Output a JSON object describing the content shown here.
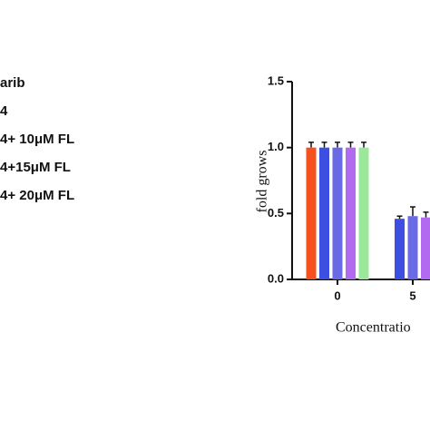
{
  "chart_data": {
    "type": "bar",
    "y_label": "fold grows",
    "x_label": "Concentratio",
    "categories": [
      "0",
      "5"
    ],
    "ylim": [
      0,
      1.5
    ],
    "yticks": [
      {
        "value": 0,
        "label": "0.0"
      },
      {
        "value": 0.5,
        "label": "0.5"
      },
      {
        "value": 1,
        "label": "1.0"
      },
      {
        "value": 1.5,
        "label": "1.5"
      }
    ],
    "series": [
      {
        "name": "arib",
        "color": "#f4511e",
        "values": [
          1.0,
          null
        ],
        "errors": [
          0.04,
          null
        ]
      },
      {
        "name": "4",
        "color": "#3d4fe0",
        "values": [
          1.0,
          0.46
        ],
        "errors": [
          0.04,
          0.02
        ]
      },
      {
        "name": "4+ 10μM FL",
        "color": "#6a6ae6",
        "values": [
          1.0,
          0.48
        ],
        "errors": [
          0.04,
          0.07
        ]
      },
      {
        "name": "4+15μM FL",
        "color": "#b26bf0",
        "values": [
          1.0,
          0.47
        ],
        "errors": [
          0.04,
          0.04
        ]
      },
      {
        "name": "4+ 20μM FL",
        "color": "#9be89b",
        "values": [
          1.0,
          null
        ],
        "errors": [
          0.04,
          null
        ]
      }
    ]
  }
}
